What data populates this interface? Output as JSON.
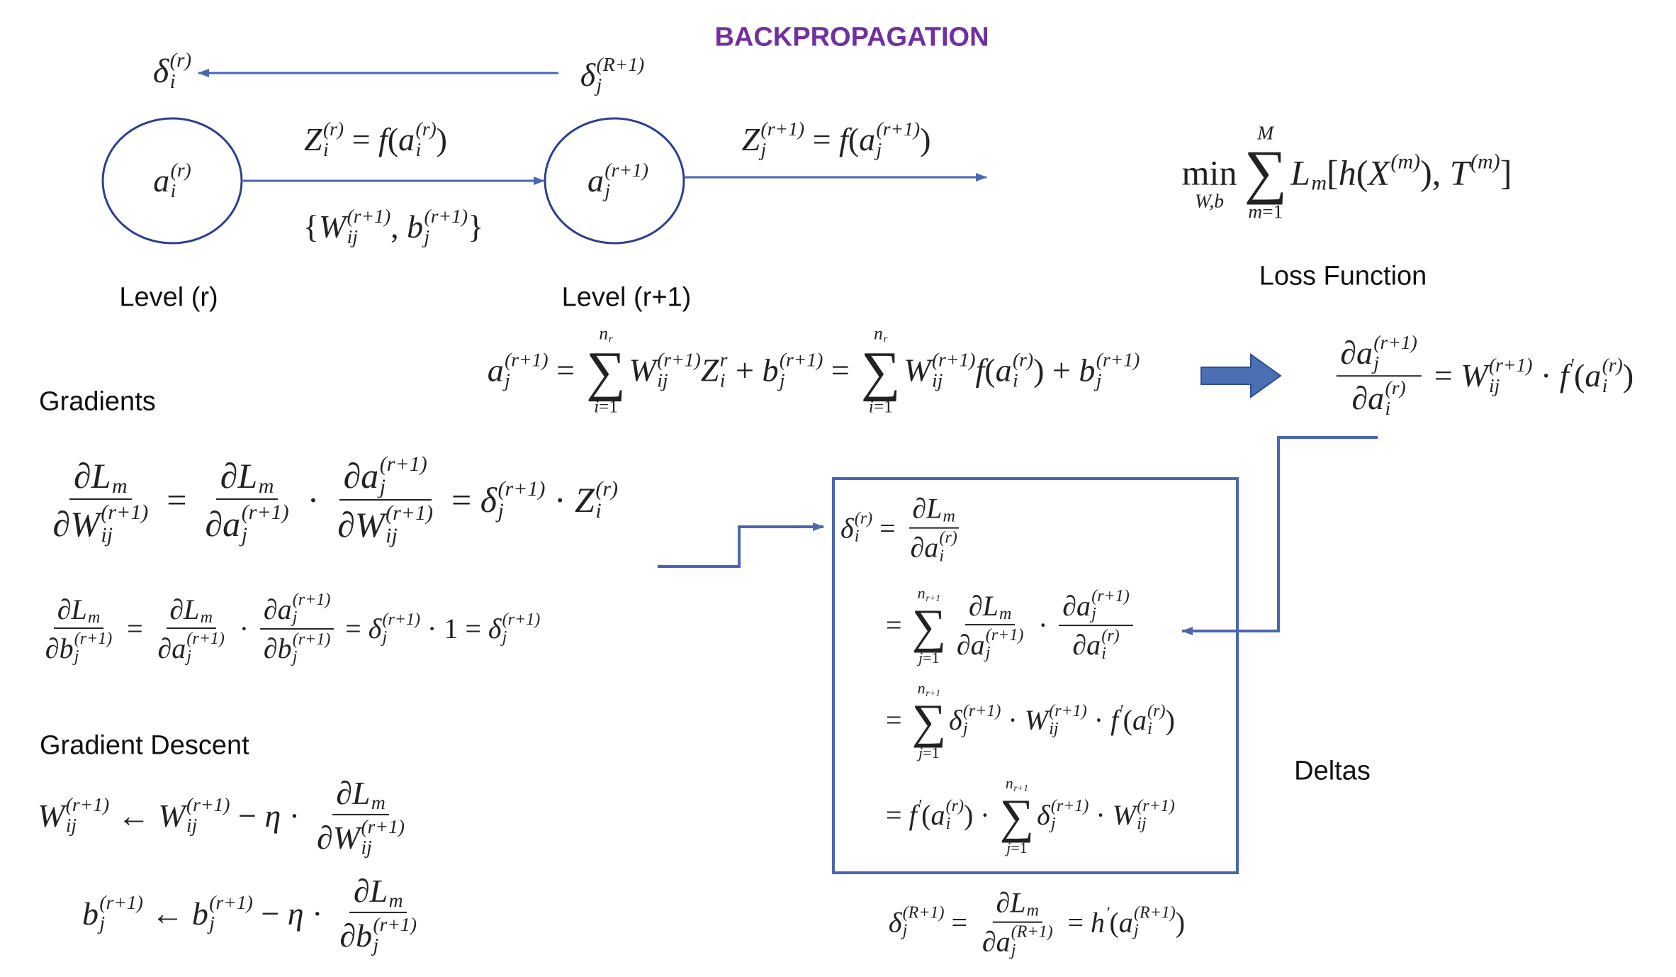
{
  "title": "BACKPROPAGATION",
  "delta_left": [
    {
      "v": "δ",
      "sub": "i",
      "sup": "(r)"
    }
  ],
  "delta_right": [
    {
      "v": "δ",
      "sub": "j",
      "sup": "(R+1)"
    }
  ],
  "node_r": [
    {
      "v": "a",
      "sub": "i",
      "sup": "(r)"
    }
  ],
  "node_r1": [
    {
      "v": "a",
      "sub": "j",
      "sup": "(r+1)"
    }
  ],
  "z_r": [
    {
      "v": "Z",
      "sub": "i",
      "sup": "(r)"
    },
    " = ",
    {
      "v": "f"
    },
    "(",
    {
      "v": "a",
      "sub": "i",
      "sup": "(r)"
    },
    ")"
  ],
  "params": [
    "{",
    {
      "v": "W",
      "sub": "ij",
      "sup": "(r+1)"
    },
    ", ",
    {
      "v": "b",
      "sub": "j",
      "sup": "(r+1)"
    },
    "}"
  ],
  "z_r1": [
    {
      "v": "Z",
      "sub": "j",
      "sup": "(r+1)"
    },
    " = ",
    {
      "v": "f"
    },
    "(",
    {
      "v": "a",
      "sub": "j",
      "sup": "(r+1)"
    },
    ")"
  ],
  "level_r": "Level (r)",
  "level_r1": "Level (r+1)",
  "loss_eq": [
    {
      "op": "min",
      "bottom": [
        {
          "v": "W,b"
        }
      ]
    },
    {
      "op": "∑",
      "top": [
        {
          "v": "M"
        }
      ],
      "bottom": [
        {
          "v": "m"
        },
        "=1"
      ]
    },
    {
      "v": "L",
      "sub": "m"
    },
    "[",
    {
      "v": "h"
    },
    "(",
    {
      "v": "X",
      "sup": "(m)"
    },
    "), ",
    {
      "v": "T",
      "sup": "(m)"
    },
    "]"
  ],
  "loss_label": "Loss Function",
  "forward_eq": [
    {
      "v": "a",
      "sub": "j",
      "sup": "(r+1)"
    },
    " = ",
    {
      "op": "∑",
      "top": [
        {
          "v": "n",
          "sub": "r"
        }
      ],
      "bottom": [
        {
          "v": "i"
        },
        "=1"
      ]
    },
    {
      "v": "W",
      "sub": "ij",
      "sup": "(r+1)"
    },
    {
      "v": "Z",
      "sub": "i",
      "sup": "r"
    },
    " + ",
    {
      "v": "b",
      "sub": "j",
      "sup": "(r+1)"
    },
    " = ",
    {
      "op": "∑",
      "top": [
        {
          "v": "n",
          "sub": "r"
        }
      ],
      "bottom": [
        {
          "v": "i"
        },
        "=1"
      ]
    },
    {
      "v": "W",
      "sub": "ij",
      "sup": "(r+1)"
    },
    {
      "v": "f"
    },
    "(",
    {
      "v": "a",
      "sub": "i",
      "sup": "(r)"
    },
    ") + ",
    {
      "v": "b",
      "sub": "j",
      "sup": "(r+1)"
    }
  ],
  "local_derivative": [
    {
      "num": [
        {
          "v": "∂a",
          "sub": "j",
          "sup": "(r+1)"
        }
      ],
      "den": [
        {
          "v": "∂a",
          "sub": "i",
          "sup": "(r)"
        }
      ]
    },
    " = ",
    {
      "v": "W",
      "sub": "ij",
      "sup": "(r+1)"
    },
    " · ",
    {
      "v": "f",
      "sup": "′"
    },
    "(",
    {
      "v": "a",
      "sub": "i",
      "sup": "(r)"
    },
    ")"
  ],
  "gradients_heading": "Gradients",
  "grad_w": [
    {
      "num": [
        {
          "v": "∂L",
          "sub": "m"
        }
      ],
      "den": [
        {
          "v": "∂W",
          "sub": "ij",
          "sup": "(r+1)"
        }
      ]
    },
    " = ",
    {
      "num": [
        {
          "v": "∂L",
          "sub": "m"
        }
      ],
      "den": [
        {
          "v": "∂a",
          "sub": "j",
          "sup": "(r+1)"
        }
      ]
    },
    " · ",
    {
      "num": [
        {
          "v": "∂a",
          "sub": "j",
          "sup": "(r+1)"
        }
      ],
      "den": [
        {
          "v": "∂W",
          "sub": "ij",
          "sup": "(r+1)"
        }
      ]
    },
    " = ",
    {
      "v": "δ",
      "sub": "j",
      "sup": "(r+1)"
    },
    " · ",
    {
      "v": "Z",
      "sub": "i",
      "sup": "(r)"
    }
  ],
  "grad_b": [
    {
      "num": [
        {
          "v": "∂L",
          "sub": "m"
        }
      ],
      "den": [
        {
          "v": "∂b",
          "sub": "j",
          "sup": "(r+1)"
        }
      ]
    },
    " = ",
    {
      "num": [
        {
          "v": "∂L",
          "sub": "m"
        }
      ],
      "den": [
        {
          "v": "∂a",
          "sub": "j",
          "sup": "(r+1)"
        }
      ]
    },
    " · ",
    {
      "num": [
        {
          "v": "∂a",
          "sub": "j",
          "sup": "(r+1)"
        }
      ],
      "den": [
        {
          "v": "∂b",
          "sub": "j",
          "sup": "(r+1)"
        }
      ]
    },
    " = ",
    {
      "v": "δ",
      "sub": "j",
      "sup": "(r+1)"
    },
    " · 1 = ",
    {
      "v": "δ",
      "sub": "j",
      "sup": "(r+1)"
    }
  ],
  "descent_heading": "Gradient Descent",
  "update_w": [
    {
      "v": "W",
      "sub": "ij",
      "sup": "(r+1)"
    },
    " ← ",
    {
      "v": "W",
      "sub": "ij",
      "sup": "(r+1)"
    },
    " − ",
    {
      "v": "η"
    },
    " · ",
    {
      "num": [
        {
          "v": "∂L",
          "sub": "m"
        }
      ],
      "den": [
        {
          "v": "∂W",
          "sub": "ij",
          "sup": "(r+1)"
        }
      ]
    }
  ],
  "update_b": [
    {
      "v": "b",
      "sub": "j",
      "sup": "(r+1)"
    },
    " ← ",
    {
      "v": "b",
      "sub": "j",
      "sup": "(r+1)"
    },
    " − ",
    {
      "v": "η"
    },
    " · ",
    {
      "num": [
        {
          "v": "∂L",
          "sub": "m"
        }
      ],
      "den": [
        {
          "v": "∂b",
          "sub": "j",
          "sup": "(r+1)"
        }
      ]
    }
  ],
  "delta_1": [
    {
      "v": "δ",
      "sub": "i",
      "sup": "(r)"
    },
    " = ",
    {
      "num": [
        {
          "v": "∂L",
          "sub": "m"
        }
      ],
      "den": [
        {
          "v": "∂a",
          "sub": "i",
          "sup": "(r)"
        }
      ]
    }
  ],
  "delta_2": [
    " = ",
    {
      "op": "∑",
      "top": [
        {
          "v": "n",
          "sub": "r+1"
        }
      ],
      "bottom": [
        {
          "v": "j"
        },
        "=1"
      ]
    },
    {
      "num": [
        {
          "v": "∂L",
          "sub": "m"
        }
      ],
      "den": [
        {
          "v": "∂a",
          "sub": "j",
          "sup": "(r+1)"
        }
      ]
    },
    " · ",
    {
      "num": [
        {
          "v": "∂a",
          "sub": "j",
          "sup": "(r+1)"
        }
      ],
      "den": [
        {
          "v": "∂a",
          "sub": "i",
          "sup": "(r)"
        }
      ]
    }
  ],
  "delta_3": [
    " = ",
    {
      "op": "∑",
      "top": [
        {
          "v": "n",
          "sub": "r+1"
        }
      ],
      "bottom": [
        {
          "v": "j"
        },
        "=1"
      ]
    },
    {
      "v": "δ",
      "sub": "j",
      "sup": "(r+1)"
    },
    " · ",
    {
      "v": "W",
      "sub": "ij",
      "sup": "(r+1)"
    },
    " · ",
    {
      "v": "f",
      "sup": "′"
    },
    "(",
    {
      "v": "a",
      "sub": "i",
      "sup": "(r)"
    },
    ")"
  ],
  "delta_4": [
    " = ",
    {
      "v": "f",
      "sup": "′"
    },
    "(",
    {
      "v": "a",
      "sub": "i",
      "sup": "(r)"
    },
    ") · ",
    {
      "op": "∑",
      "top": [
        {
          "v": "n",
          "sub": "r+1"
        }
      ],
      "bottom": [
        {
          "v": "j"
        },
        "=1"
      ]
    },
    {
      "v": "δ",
      "sub": "j",
      "sup": "(r+1)"
    },
    " · ",
    {
      "v": "W",
      "sub": "ij",
      "sup": "(r+1)"
    }
  ],
  "deltas_label": "Deltas",
  "output_delta": [
    {
      "v": "δ",
      "sub": "j",
      "sup": "(R+1)"
    },
    " = ",
    {
      "num": [
        {
          "v": "∂L",
          "sub": "m"
        }
      ],
      "den": [
        {
          "v": "∂a",
          "sub": "j",
          "sup": "(R+1)"
        }
      ]
    },
    " = ",
    {
      "v": "h",
      "sup": "′"
    },
    "(",
    {
      "v": "a",
      "sub": "j",
      "sup": "(R+1)"
    },
    ")"
  ]
}
